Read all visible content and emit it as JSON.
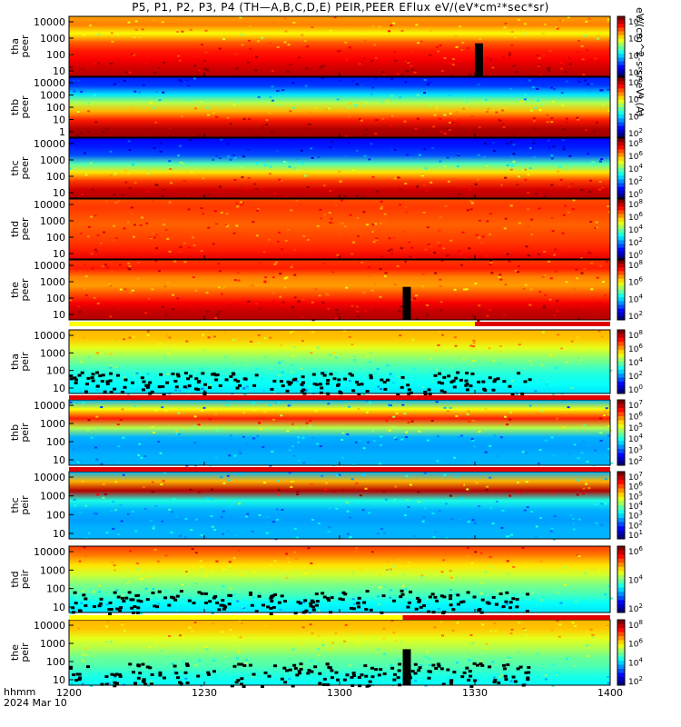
{
  "title": "P5, P1, P2, P3, P4 (TH—A,B,C,D,E) PEIR,PEER EFlux eV/(eV*cm²*sec*sr)",
  "colorbar_unit": "eV/(cm^2-s-sr-eV) (A)",
  "time_axis": {
    "label_1": "hhmm",
    "label_2": "2024 Mar 10",
    "ticks": [
      "1200",
      "1230",
      "1300",
      "1330",
      "1400"
    ]
  },
  "chart_data": [
    {
      "type": "heatmap",
      "probe": "tha",
      "species": "peer",
      "ylabel": [
        "tha",
        "peer"
      ],
      "yscale": "log",
      "yticks": [
        "10",
        "100",
        "1000",
        "10000"
      ],
      "cbar_ticks": [
        "10^2",
        "10^4",
        "10^6",
        "10^8"
      ],
      "gap": {
        "start": "1330",
        "end": "1331"
      }
    },
    {
      "type": "heatmap",
      "probe": "thb",
      "species": "peer",
      "ylabel": [
        "thb",
        "peer"
      ],
      "yscale": "log",
      "yticks": [
        "1",
        "10",
        "100",
        "1000",
        "10000"
      ],
      "cbar_ticks": [
        "10^2",
        "10^4",
        "10^6",
        "10^8"
      ]
    },
    {
      "type": "heatmap",
      "probe": "thc",
      "species": "peer",
      "ylabel": [
        "thc",
        "peer"
      ],
      "yscale": "log",
      "yticks": [
        "10",
        "100",
        "1000",
        "10000"
      ],
      "cbar_ticks": [
        "10^0",
        "10^2",
        "10^4",
        "10^6",
        "10^8"
      ]
    },
    {
      "type": "heatmap",
      "probe": "thd",
      "species": "peer",
      "ylabel": [
        "thd",
        "peer"
      ],
      "yscale": "log",
      "yticks": [
        "10",
        "100",
        "1000",
        "10000"
      ],
      "cbar_ticks": [
        "10^0",
        "10^2",
        "10^4",
        "10^6",
        "10^8"
      ]
    },
    {
      "type": "heatmap",
      "probe": "the",
      "species": "peer",
      "ylabel": [
        "the",
        "peer"
      ],
      "yscale": "log",
      "yticks": [
        "10",
        "100",
        "1000",
        "10000"
      ],
      "cbar_ticks": [
        "10^2",
        "10^4",
        "10^6",
        "10^8"
      ],
      "gap": {
        "start": "1314",
        "end": "1315"
      }
    },
    {
      "type": "heatmap",
      "probe": "tha",
      "species": "peir",
      "ylabel": [
        "tha",
        "peir"
      ],
      "yscale": "log",
      "yticks": [
        "10",
        "100",
        "1000",
        "10000"
      ],
      "cbar_ticks": [
        "10^0",
        "10^2",
        "10^4",
        "10^6",
        "10^8"
      ],
      "mode_bar": [
        "yellow until 1330, red after"
      ]
    },
    {
      "type": "heatmap",
      "probe": "thb",
      "species": "peir",
      "ylabel": [
        "thb",
        "peir"
      ],
      "yscale": "log",
      "yticks": [
        "10",
        "100",
        "1000",
        "10000"
      ],
      "cbar_ticks": [
        "10^2",
        "10^3",
        "10^4",
        "10^5",
        "10^6",
        "10^7"
      ]
    },
    {
      "type": "heatmap",
      "probe": "thc",
      "species": "peir",
      "ylabel": [
        "thc",
        "peir"
      ],
      "yscale": "log",
      "yticks": [
        "10",
        "100",
        "1000",
        "10000"
      ],
      "cbar_ticks": [
        "10^1",
        "10^2",
        "10^3",
        "10^4",
        "10^5",
        "10^6",
        "10^7"
      ]
    },
    {
      "type": "heatmap",
      "probe": "thd",
      "species": "peir",
      "ylabel": [
        "thd",
        "peir"
      ],
      "yscale": "log",
      "yticks": [
        "10",
        "100",
        "1000",
        "10000"
      ],
      "cbar_ticks": [
        "10^2",
        "10^4",
        "10^6"
      ]
    },
    {
      "type": "heatmap",
      "probe": "the",
      "species": "peir",
      "ylabel": [
        "the",
        "peir"
      ],
      "yscale": "log",
      "yticks": [
        "10",
        "100",
        "1000",
        "10000"
      ],
      "cbar_ticks": [
        "10^2",
        "10^4",
        "10^6",
        "10^8"
      ],
      "gap": {
        "start": "1314",
        "end": "1315"
      }
    }
  ]
}
